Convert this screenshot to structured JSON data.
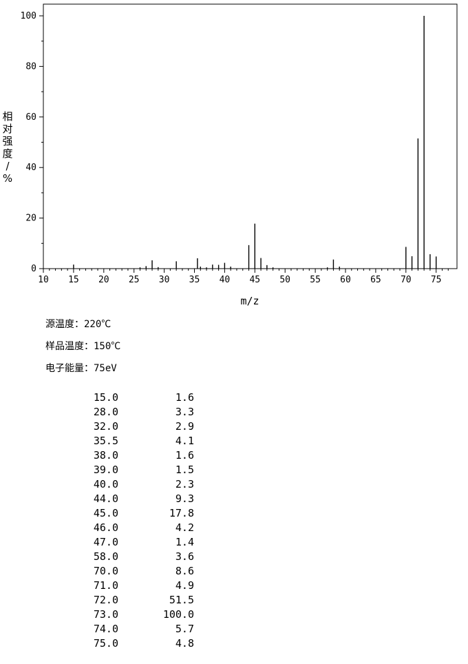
{
  "chart_data": {
    "type": "bar",
    "xlabel": "m/z",
    "ylabel": "相对强度/%",
    "xlim": [
      10,
      78
    ],
    "ylim": [
      0,
      100
    ],
    "x_ticks": [
      10,
      15,
      20,
      25,
      30,
      35,
      40,
      45,
      50,
      55,
      60,
      65,
      70,
      75
    ],
    "y_ticks": [
      0,
      20,
      40,
      60,
      80,
      100
    ],
    "peaks": [
      {
        "mz": 15,
        "intensity": 1.6
      },
      {
        "mz": 28,
        "intensity": 3.3
      },
      {
        "mz": 32,
        "intensity": 2.9
      },
      {
        "mz": 35.5,
        "intensity": 4.1
      },
      {
        "mz": 38,
        "intensity": 1.6
      },
      {
        "mz": 39,
        "intensity": 1.5
      },
      {
        "mz": 40,
        "intensity": 2.3
      },
      {
        "mz": 44,
        "intensity": 9.3
      },
      {
        "mz": 45,
        "intensity": 17.8
      },
      {
        "mz": 46,
        "intensity": 4.2
      },
      {
        "mz": 47,
        "intensity": 1.4
      },
      {
        "mz": 58,
        "intensity": 3.6
      },
      {
        "mz": 70,
        "intensity": 8.6
      },
      {
        "mz": 71,
        "intensity": 4.9
      },
      {
        "mz": 72,
        "intensity": 51.5
      },
      {
        "mz": 73,
        "intensity": 100
      },
      {
        "mz": 74,
        "intensity": 5.7
      },
      {
        "mz": 75,
        "intensity": 4.8
      }
    ],
    "minor_peaks": [
      {
        "mz": 26,
        "intensity": 0.5
      },
      {
        "mz": 27,
        "intensity": 1.0
      },
      {
        "mz": 29,
        "intensity": 0.6
      },
      {
        "mz": 36,
        "intensity": 0.8
      },
      {
        "mz": 37,
        "intensity": 0.5
      },
      {
        "mz": 41,
        "intensity": 0.8
      },
      {
        "mz": 48,
        "intensity": 0.5
      },
      {
        "mz": 57,
        "intensity": 0.5
      },
      {
        "mz": 59,
        "intensity": 0.8
      }
    ]
  },
  "conditions": {
    "source_temp": "源温度：220℃",
    "sample_temp": "样品温度：150℃",
    "electron_energy": "电子能量：75eV"
  },
  "peak_table": [
    {
      "mz": "15.0",
      "intensity": "1.6"
    },
    {
      "mz": "28.0",
      "intensity": "3.3"
    },
    {
      "mz": "32.0",
      "intensity": "2.9"
    },
    {
      "mz": "35.5",
      "intensity": "4.1"
    },
    {
      "mz": "38.0",
      "intensity": "1.6"
    },
    {
      "mz": "39.0",
      "intensity": "1.5"
    },
    {
      "mz": "40.0",
      "intensity": "2.3"
    },
    {
      "mz": "44.0",
      "intensity": "9.3"
    },
    {
      "mz": "45.0",
      "intensity": "17.8"
    },
    {
      "mz": "46.0",
      "intensity": "4.2"
    },
    {
      "mz": "47.0",
      "intensity": "1.4"
    },
    {
      "mz": "58.0",
      "intensity": "3.6"
    },
    {
      "mz": "70.0",
      "intensity": "8.6"
    },
    {
      "mz": "71.0",
      "intensity": "4.9"
    },
    {
      "mz": "72.0",
      "intensity": "51.5"
    },
    {
      "mz": "73.0",
      "intensity": "100.0"
    },
    {
      "mz": "74.0",
      "intensity": "5.7"
    },
    {
      "mz": "75.0",
      "intensity": "4.8"
    }
  ]
}
